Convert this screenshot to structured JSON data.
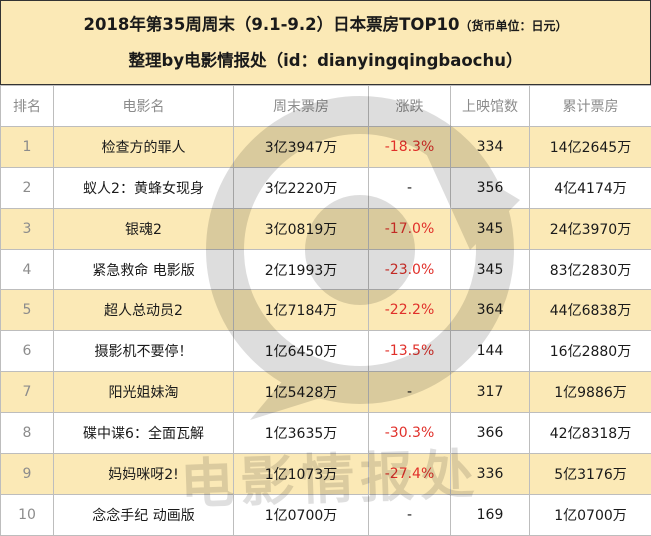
{
  "header": {
    "title": "2018年第35周周末（9.1-9.2）日本票房TOP10",
    "unit": "（货币单位：日元）",
    "subtitle": "整理by电影情报处（id：dianyingqingbaochu）"
  },
  "columns": [
    "排名",
    "电影名",
    "周末票房",
    "涨跌",
    "上映馆数",
    "累计票房"
  ],
  "rows": [
    {
      "rank": "1",
      "title": "检查方的罪人",
      "weekend": "3亿3947万",
      "change": "-18.3%",
      "theaters": "334",
      "total": "14亿2645万"
    },
    {
      "rank": "2",
      "title": "蚁人2：黄蜂女现身",
      "weekend": "3亿2220万",
      "change": "-",
      "theaters": "356",
      "total": "4亿4174万"
    },
    {
      "rank": "3",
      "title": "银魂2",
      "weekend": "3亿0819万",
      "change": "-17.0%",
      "theaters": "345",
      "total": "24亿3970万"
    },
    {
      "rank": "4",
      "title": "紧急救命 电影版",
      "weekend": "2亿1993万",
      "change": "-23.0%",
      "theaters": "345",
      "total": "83亿2830万"
    },
    {
      "rank": "5",
      "title": "超人总动员2",
      "weekend": "1亿7184万",
      "change": "-22.2%",
      "theaters": "364",
      "total": "44亿6838万"
    },
    {
      "rank": "6",
      "title": "摄影机不要停！",
      "weekend": "1亿6450万",
      "change": "-13.5%",
      "theaters": "144",
      "total": "16亿2880万"
    },
    {
      "rank": "7",
      "title": "阳光姐妹淘",
      "weekend": "1亿5428万",
      "change": "-",
      "theaters": "317",
      "total": "1亿9886万"
    },
    {
      "rank": "8",
      "title": "碟中谍6：全面瓦解",
      "weekend": "1亿3635万",
      "change": "-30.3%",
      "theaters": "366",
      "total": "42亿8318万"
    },
    {
      "rank": "9",
      "title": "妈妈咪呀2!",
      "weekend": "1亿1073万",
      "change": "-27.4%",
      "theaters": "336",
      "total": "5亿3176万"
    },
    {
      "rank": "10",
      "title": "念念手纪 动画版",
      "weekend": "1亿0700万",
      "change": "-",
      "theaters": "169",
      "total": "1亿0700万"
    }
  ],
  "watermark": {
    "text": "电影情报处",
    "icon": "camera-logo-icon"
  },
  "colors": {
    "band": "#fbe9b6",
    "negative": "#e0302a",
    "header_text": "#8c8c8c"
  }
}
